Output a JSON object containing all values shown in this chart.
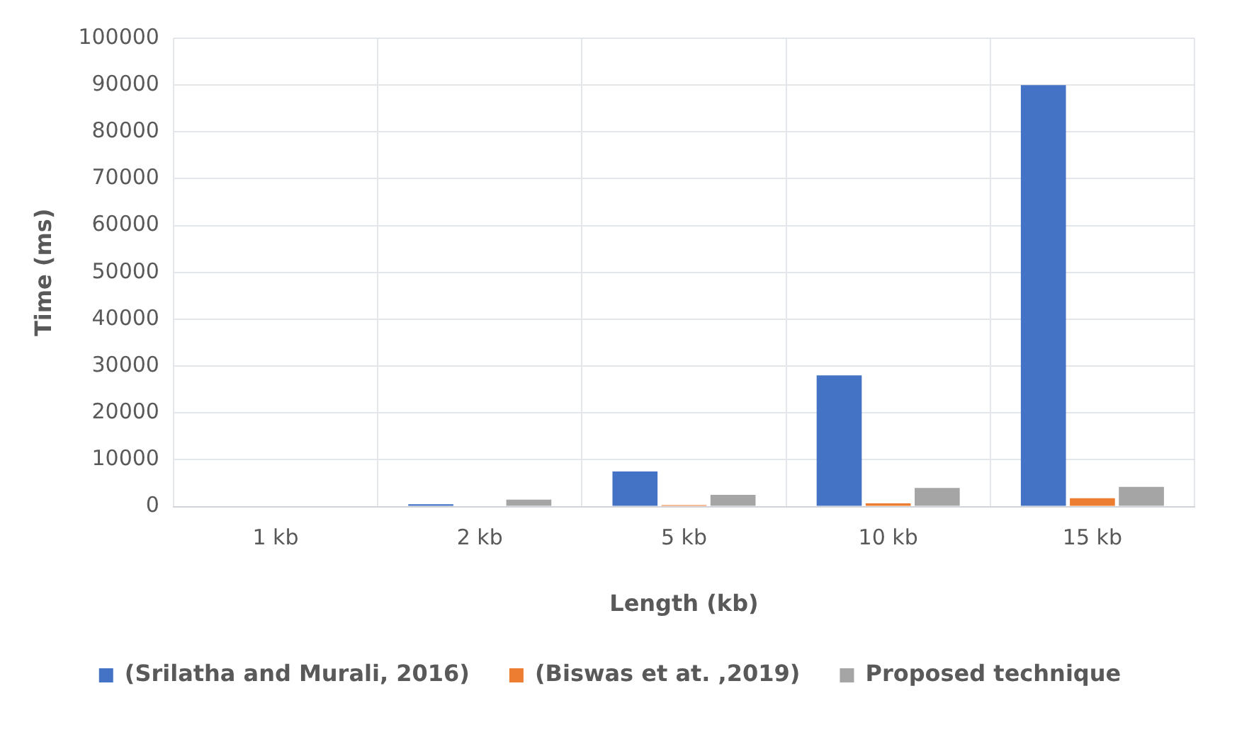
{
  "chart_data": {
    "type": "bar",
    "xlabel": "Length (kb)",
    "ylabel": "Time (ms)",
    "categories": [
      "1 kb",
      "2 kb",
      "5 kb",
      "10 kb",
      "15 kb"
    ],
    "series": [
      {
        "name": "(Srilatha and Murali, 2016)",
        "color": "#4472c4",
        "values": [
          0,
          500,
          7500,
          28000,
          90000
        ]
      },
      {
        "name": "(Biswas et at. ,2019)",
        "color": "#ed7d31",
        "values": [
          0,
          0,
          300,
          700,
          1800
        ]
      },
      {
        "name": "Proposed technique",
        "color": "#a5a5a5",
        "values": [
          0,
          1500,
          2500,
          4000,
          4200
        ]
      }
    ],
    "ylim": [
      0,
      100000
    ],
    "yticks": [
      0,
      10000,
      20000,
      30000,
      40000,
      50000,
      60000,
      70000,
      80000,
      90000,
      100000
    ],
    "grid": true,
    "legend": "bottom"
  }
}
